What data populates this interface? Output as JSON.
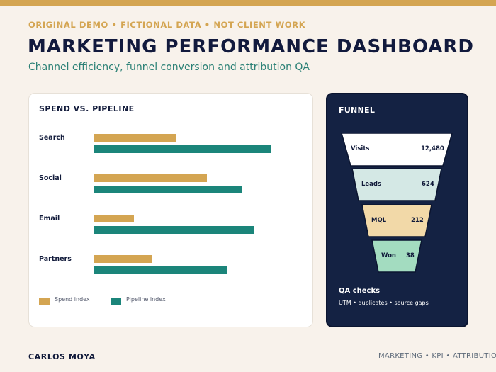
{
  "header": {
    "kicker": "ORIGINAL DEMO  •  FICTIONAL DATA  •  NOT CLIENT WORK",
    "title": "MARKETING PERFORMANCE DASHBOARD",
    "subtitle": "Channel efficiency, funnel conversion and attribution QA"
  },
  "chart_data": [
    {
      "type": "bar",
      "title": "SPEND VS. PIPELINE",
      "orientation": "horizontal",
      "categories": [
        "Search",
        "Social",
        "Email",
        "Partners"
      ],
      "series": [
        {
          "name": "Spend index",
          "values": [
            37,
            51,
            18,
            26
          ],
          "color": "#d4a552"
        },
        {
          "name": "Pipeline index",
          "values": [
            80,
            67,
            72,
            60
          ],
          "color": "#1b857a"
        }
      ],
      "xlim": [
        0,
        100
      ],
      "grid": false,
      "legend": "bottom-left"
    },
    {
      "type": "funnel",
      "title": "FUNNEL",
      "stages": [
        {
          "label": "Visits",
          "value": "12,480",
          "color": "#ffffff"
        },
        {
          "label": "Leads",
          "value": "624",
          "color": "#d4e8e5"
        },
        {
          "label": "MQL",
          "value": "212",
          "color": "#f2d9a8"
        },
        {
          "label": "Won",
          "value": "38",
          "color": "#a3dcc0"
        }
      ]
    }
  ],
  "qa": {
    "title": "QA checks",
    "text": "UTM • duplicates • source gaps"
  },
  "footer": {
    "author": "CARLOS MOYA",
    "tags": "MARKETING • KPI • ATTRIBUTION QA"
  }
}
